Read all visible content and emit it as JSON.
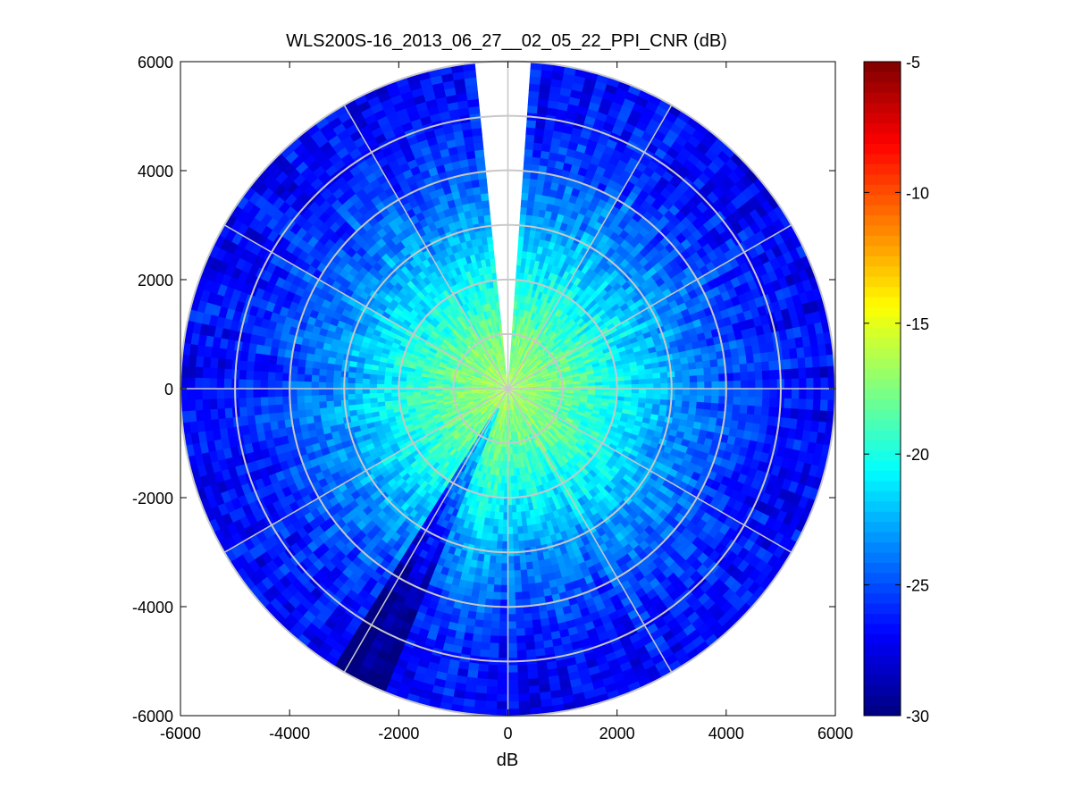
{
  "chart_data": {
    "type": "heatmap",
    "subtype": "polar-ppi",
    "title": "WLS200S-16_2013_06_27__02_05_22_PPI_CNR (dB)",
    "xlabel": "dB",
    "ylabel": "",
    "xlim": [
      -6000,
      6000
    ],
    "ylim": [
      -6000,
      6000
    ],
    "x_ticks": [
      "-6000",
      "-4000",
      "-2000",
      "0",
      "2000",
      "4000",
      "6000"
    ],
    "y_ticks": [
      "6000",
      "4000",
      "2000",
      "0",
      "-2000",
      "-4000",
      "-6000"
    ],
    "x_tick_values": [
      -6000,
      -4000,
      -2000,
      0,
      2000,
      4000,
      6000
    ],
    "y_tick_values": [
      6000,
      4000,
      2000,
      0,
      -2000,
      -4000,
      -6000
    ],
    "max_range": 6000,
    "range_rings": [
      1000,
      2000,
      3000,
      4000,
      5000,
      6000
    ],
    "spoke_angles_deg": [
      0,
      30,
      60,
      90,
      120,
      150,
      180,
      210,
      240,
      270,
      300,
      330
    ],
    "grid": true,
    "missing_sector_azimuth_deg": [
      355,
      5
    ],
    "low_cnr_streak_azimuth_deg": [
      202,
      212
    ],
    "cnr_profile": {
      "range_m": [
        0,
        1000,
        2000,
        3000,
        4000,
        5000,
        6000
      ],
      "cnr_db": [
        -16.5,
        -18.0,
        -20.5,
        -23.0,
        -25.0,
        -26.5,
        -27.0
      ]
    },
    "colorbar": {
      "colormap": "jet",
      "clim": [
        -30,
        -5
      ],
      "ticks": [
        "-5",
        "-10",
        "-15",
        "-20",
        "-25",
        "-30"
      ],
      "tick_values": [
        -5,
        -10,
        -15,
        -20,
        -25,
        -30
      ]
    },
    "colors": {
      "grid_line": "#c8c8c8",
      "axes": "#000000",
      "background": "#ffffff"
    }
  }
}
